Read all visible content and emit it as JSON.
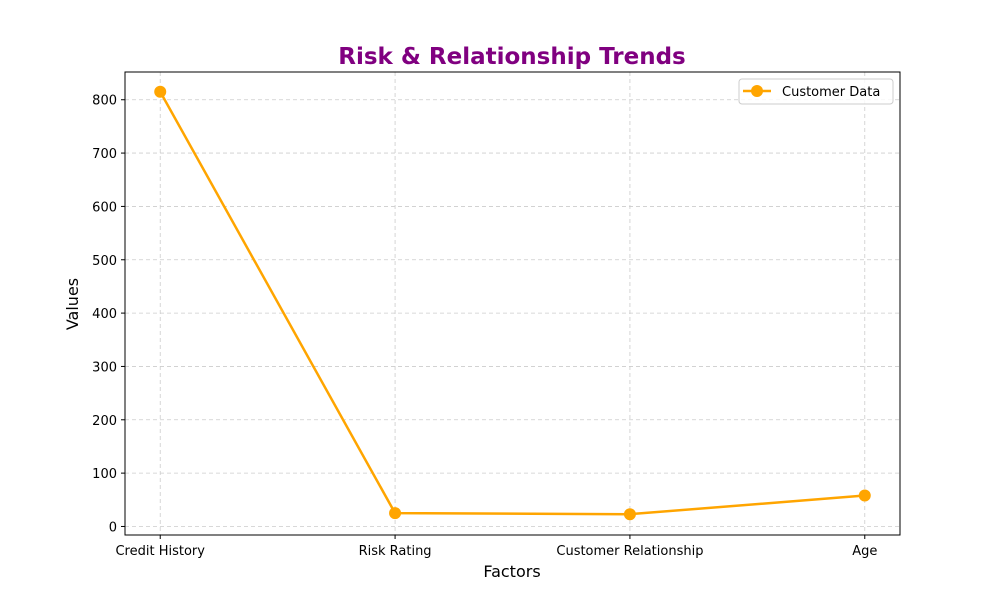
{
  "chart_data": {
    "type": "line",
    "title": "Risk & Relationship Trends",
    "xlabel": "Factors",
    "ylabel": "Values",
    "categories": [
      "Credit History",
      "Risk Rating",
      "Customer Relationship",
      "Age"
    ],
    "series": [
      {
        "name": "Customer Data",
        "values": [
          815,
          25,
          23,
          58
        ],
        "color": "#ffa500",
        "marker": "circle"
      }
    ],
    "ylim": [
      -16,
      852
    ],
    "yticks": [
      0,
      100,
      200,
      300,
      400,
      500,
      600,
      700,
      800
    ],
    "grid": true,
    "grid_style": "dashed",
    "legend_position": "upper-right"
  },
  "colors": {
    "title": "#800080",
    "line": "#ffa500",
    "grid": "#cccccc",
    "axis": "#000000"
  }
}
